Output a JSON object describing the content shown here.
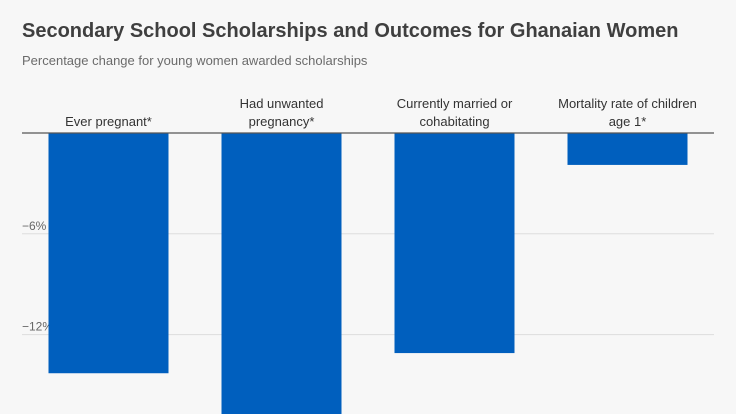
{
  "title": "Secondary School Scholarships and Outcomes for Ghanaian Women",
  "subtitle": "Percentage change for young women awarded scholarships",
  "chart_data": {
    "type": "bar",
    "categories": [
      [
        "Ever pregnant*"
      ],
      [
        "Had unwanted",
        "pregnancy*"
      ],
      [
        "Currently married or",
        "cohabitating"
      ],
      [
        "Mortality rate of children",
        "age 1*"
      ]
    ],
    "values": [
      -14.3,
      -17.0,
      -13.1,
      -1.9
    ],
    "yticks": [
      {
        "value": -6,
        "label": "−6%"
      },
      {
        "value": -12,
        "label": "−12%"
      }
    ],
    "ylim": [
      -17,
      0
    ],
    "bar_color": "#005fbe",
    "grid": true
  }
}
